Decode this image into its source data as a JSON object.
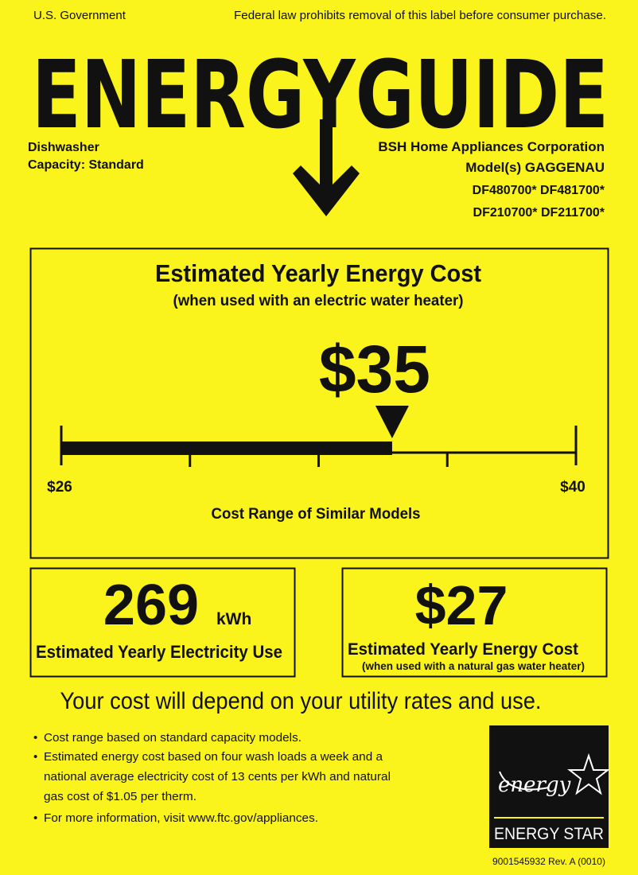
{
  "header": {
    "issuer": "U.S. Government",
    "notice": "Federal law prohibits removal of this label before consumer purchase.",
    "title": "ENERGYGUIDE"
  },
  "product": {
    "type": "Dishwasher",
    "capacity": "Capacity: Standard",
    "manufacturer": "BSH Home Appliances Corporation",
    "models": [
      "Model(s) GAGGENAU",
      "DF480700* DF481700*",
      "DF210700* DF211700*"
    ]
  },
  "main_cost": {
    "title": "Estimated Yearly Energy Cost",
    "subtitle": "(when used with an electric water heater)",
    "cost": {
      "value": 35,
      "label": "$35"
    },
    "range_min": {
      "value": 26,
      "label": "$26"
    },
    "range_max": {
      "value": 40,
      "label": "$40"
    },
    "range_caption": "Cost Range of Similar Models"
  },
  "electricity": {
    "value": "269",
    "unit": "kWh",
    "caption": "Estimated Yearly Electricity Use"
  },
  "gas_cost": {
    "value": "$27",
    "caption": "Estimated Yearly Energy Cost",
    "subcaption": "(when used with a natural gas water heater)"
  },
  "statement": "Your cost will depend on your utility rates and use.",
  "notes": [
    "Cost range based on standard capacity models.",
    "Estimated energy cost based on four wash loads a week and a",
    "national average electricity cost of 13 cents per kWh and natural",
    "gas cost of $1.05 per therm.",
    "For more information, visit www.ftc.gov/appliances."
  ],
  "energy_star": "ENERGY STAR",
  "footer": {
    "code": "9001545932 Rev. A (0010)"
  }
}
